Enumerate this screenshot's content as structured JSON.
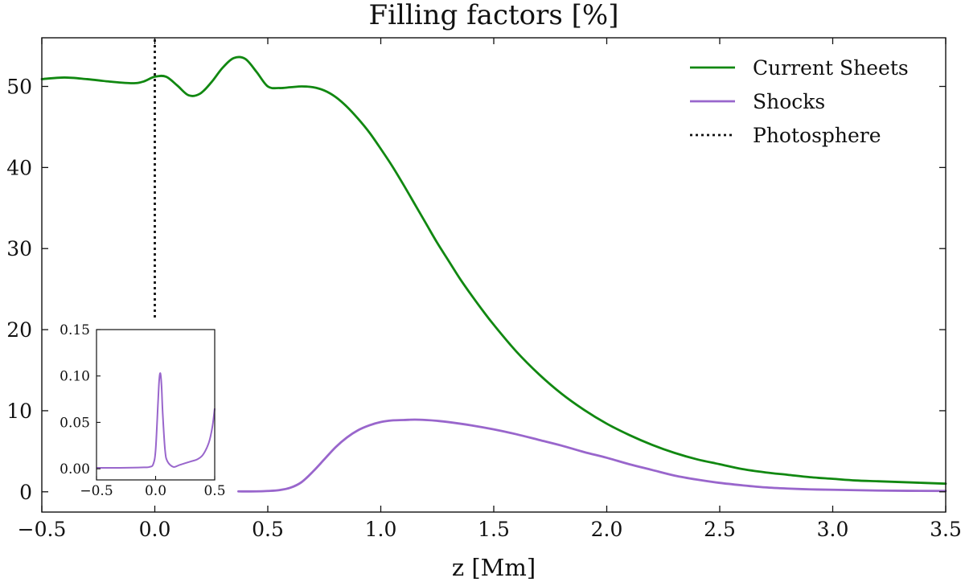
{
  "chart_data": {
    "type": "line",
    "title": "Filling factors [%]",
    "xlabel": "z [Mm]",
    "ylabel": "",
    "xlim": [
      -0.5,
      3.5
    ],
    "ylim": [
      -2.5,
      56
    ],
    "xticks": [
      -0.5,
      0.0,
      0.5,
      1.0,
      1.5,
      2.0,
      2.5,
      3.0,
      3.5
    ],
    "xtick_labels": [
      "−0.5",
      "0.0",
      "0.5",
      "1.0",
      "1.5",
      "2.0",
      "2.5",
      "3.0",
      "3.5"
    ],
    "yticks": [
      0,
      10,
      20,
      30,
      40,
      50
    ],
    "ytick_labels": [
      "0",
      "10",
      "20",
      "30",
      "40",
      "50"
    ],
    "grid": false,
    "legend_position": "top-right",
    "series": [
      {
        "name": "Current Sheets",
        "color": "#118811",
        "style": "solid",
        "x": [
          -0.5,
          -0.4,
          -0.3,
          -0.2,
          -0.1,
          -0.05,
          0.0,
          0.05,
          0.1,
          0.15,
          0.2,
          0.25,
          0.3,
          0.35,
          0.4,
          0.45,
          0.5,
          0.55,
          0.6,
          0.65,
          0.7,
          0.75,
          0.8,
          0.85,
          0.9,
          0.95,
          1.0,
          1.05,
          1.1,
          1.15,
          1.2,
          1.25,
          1.3,
          1.35,
          1.4,
          1.45,
          1.5,
          1.6,
          1.7,
          1.8,
          1.9,
          2.0,
          2.1,
          2.2,
          2.3,
          2.4,
          2.5,
          2.6,
          2.7,
          2.8,
          2.9,
          3.0,
          3.1,
          3.2,
          3.3,
          3.4,
          3.5
        ],
        "y": [
          50.9,
          51.1,
          50.9,
          50.6,
          50.4,
          50.6,
          51.2,
          51.2,
          50.1,
          48.9,
          49.1,
          50.5,
          52.3,
          53.5,
          53.4,
          51.8,
          50.0,
          49.8,
          49.9,
          50.0,
          49.9,
          49.5,
          48.7,
          47.5,
          46.0,
          44.3,
          42.3,
          40.2,
          37.9,
          35.5,
          33.1,
          30.7,
          28.5,
          26.3,
          24.3,
          22.4,
          20.6,
          17.3,
          14.5,
          12.1,
          10.1,
          8.4,
          7.0,
          5.8,
          4.8,
          4.0,
          3.4,
          2.8,
          2.4,
          2.1,
          1.8,
          1.6,
          1.4,
          1.3,
          1.2,
          1.1,
          1.0
        ]
      },
      {
        "name": "Shocks",
        "color": "#9966cc",
        "style": "solid",
        "x": [
          0.37,
          0.45,
          0.5,
          0.55,
          0.6,
          0.65,
          0.7,
          0.75,
          0.8,
          0.85,
          0.9,
          0.95,
          1.0,
          1.05,
          1.1,
          1.15,
          1.2,
          1.25,
          1.3,
          1.4,
          1.5,
          1.6,
          1.7,
          1.8,
          1.9,
          2.0,
          2.1,
          2.2,
          2.3,
          2.4,
          2.5,
          2.6,
          2.7,
          2.8,
          2.9,
          3.0,
          3.2,
          3.5
        ],
        "y": [
          0.05,
          0.05,
          0.1,
          0.2,
          0.5,
          1.2,
          2.5,
          4.0,
          5.5,
          6.7,
          7.6,
          8.2,
          8.6,
          8.8,
          8.85,
          8.9,
          8.85,
          8.75,
          8.6,
          8.2,
          7.7,
          7.1,
          6.4,
          5.7,
          4.9,
          4.2,
          3.4,
          2.7,
          2.0,
          1.5,
          1.1,
          0.8,
          0.55,
          0.4,
          0.3,
          0.25,
          0.15,
          0.1
        ]
      },
      {
        "name": "Photosphere",
        "color": "#111111",
        "style": "dotted",
        "x": [
          0.0,
          0.0
        ],
        "y": [
          21.5,
          56
        ]
      }
    ],
    "inset": {
      "xlim": [
        -0.5,
        0.5
      ],
      "ylim": [
        -0.012,
        0.15
      ],
      "xticks": [
        -0.5,
        0.0,
        0.5
      ],
      "xtick_labels": [
        "−0.5",
        "0.0",
        "0.5"
      ],
      "yticks": [
        0.0,
        0.05,
        0.1,
        0.15
      ],
      "ytick_labels": [
        "0.00",
        "0.05",
        "0.10",
        "0.15"
      ],
      "series": {
        "name": "Shocks",
        "color": "#9966cc",
        "x": [
          -0.5,
          -0.3,
          -0.1,
          -0.05,
          -0.02,
          0.0,
          0.02,
          0.03,
          0.04,
          0.05,
          0.06,
          0.08,
          0.1,
          0.15,
          0.2,
          0.25,
          0.3,
          0.35,
          0.4,
          0.45,
          0.48,
          0.5
        ],
        "y": [
          0.001,
          0.001,
          0.0015,
          0.002,
          0.005,
          0.02,
          0.07,
          0.095,
          0.103,
          0.09,
          0.06,
          0.02,
          0.008,
          0.002,
          0.004,
          0.006,
          0.008,
          0.01,
          0.015,
          0.028,
          0.045,
          0.065
        ]
      }
    }
  }
}
